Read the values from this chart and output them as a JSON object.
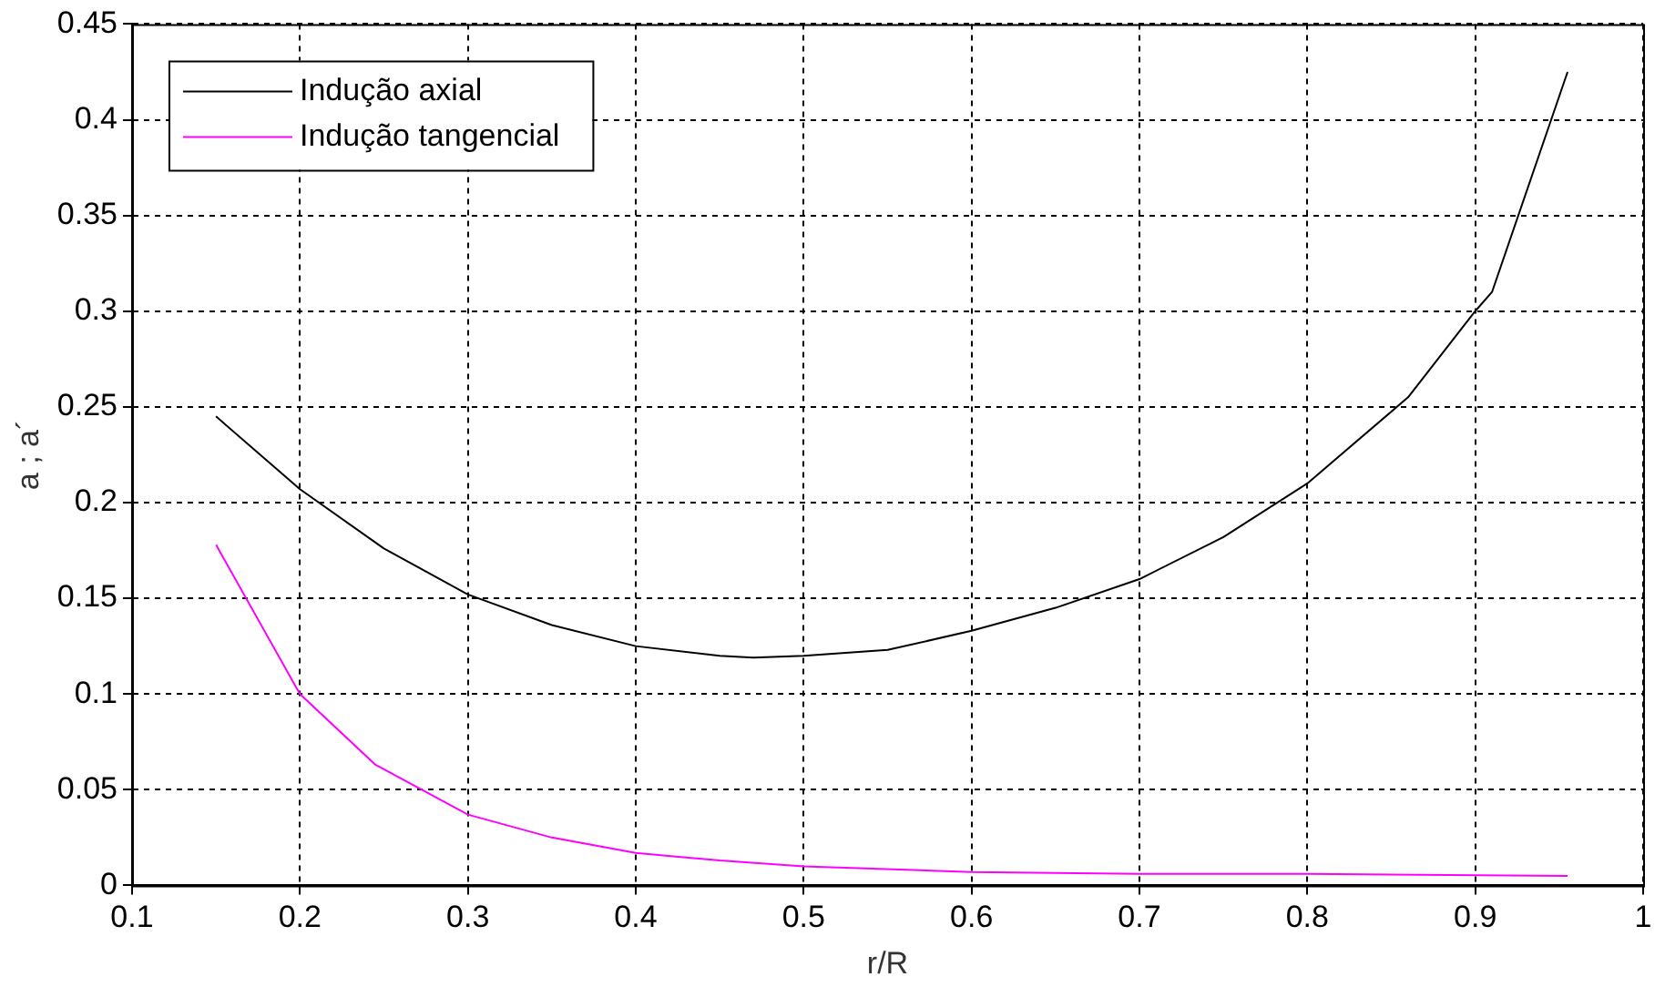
{
  "chart_data": {
    "type": "line",
    "xlabel": "r/R",
    "ylabel": "a ; a´",
    "xlim": [
      0.1,
      1
    ],
    "xticks": [
      0.1,
      0.2,
      0.3,
      0.4,
      0.5,
      0.6,
      0.7,
      0.8,
      0.9,
      1
    ],
    "ylim": [
      0,
      0.45
    ],
    "yticks": [
      0,
      0.05,
      0.1,
      0.15,
      0.2,
      0.25,
      0.3,
      0.35,
      0.4,
      0.45
    ],
    "grid": true,
    "legend": "top left",
    "marker": "none",
    "line_style": "solid",
    "series": [
      {
        "name": "Indução axial",
        "color": "#000000",
        "x": [
          0.15,
          0.2,
          0.25,
          0.3,
          0.35,
          0.4,
          0.45,
          0.47,
          0.5,
          0.55,
          0.6,
          0.65,
          0.7,
          0.75,
          0.8,
          0.86,
          0.9,
          0.91,
          0.955
        ],
        "values": [
          0.245,
          0.207,
          0.176,
          0.152,
          0.136,
          0.125,
          0.12,
          0.119,
          0.12,
          0.123,
          0.133,
          0.145,
          0.16,
          0.182,
          0.21,
          0.255,
          0.3,
          0.31,
          0.425
        ]
      },
      {
        "name": "Indução tangencial",
        "color": "#ff00ff",
        "x": [
          0.15,
          0.2,
          0.245,
          0.3,
          0.35,
          0.4,
          0.45,
          0.5,
          0.6,
          0.7,
          0.8,
          0.955
        ],
        "values": [
          0.178,
          0.1,
          0.063,
          0.037,
          0.025,
          0.017,
          0.013,
          0.01,
          0.007,
          0.006,
          0.006,
          0.005
        ]
      }
    ]
  }
}
